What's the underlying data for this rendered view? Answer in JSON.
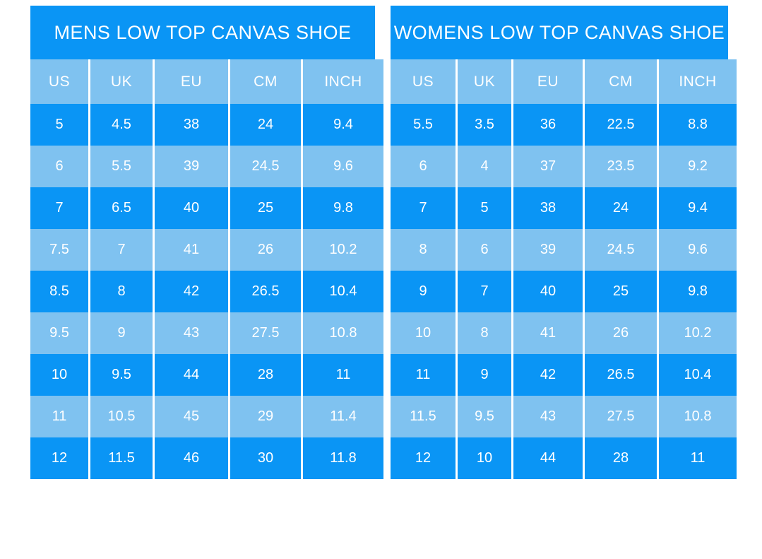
{
  "colors": {
    "primary_blue": "#0a95f5",
    "light_blue": "#7fc2f0",
    "text_white": "#ffffff",
    "page_background": "#ffffff"
  },
  "chart_data": [
    {
      "type": "table",
      "title": "MENS LOW TOP CANVAS SHOE",
      "columns": [
        "US",
        "UK",
        "EU",
        "CM",
        "INCH"
      ],
      "rows": [
        [
          "5",
          "4.5",
          "38",
          "24",
          "9.4"
        ],
        [
          "6",
          "5.5",
          "39",
          "24.5",
          "9.6"
        ],
        [
          "7",
          "6.5",
          "40",
          "25",
          "9.8"
        ],
        [
          "7.5",
          "7",
          "41",
          "26",
          "10.2"
        ],
        [
          "8.5",
          "8",
          "42",
          "26.5",
          "10.4"
        ],
        [
          "9.5",
          "9",
          "43",
          "27.5",
          "10.8"
        ],
        [
          "10",
          "9.5",
          "44",
          "28",
          "11"
        ],
        [
          "11",
          "10.5",
          "45",
          "29",
          "11.4"
        ],
        [
          "12",
          "11.5",
          "46",
          "30",
          "11.8"
        ]
      ],
      "layout_hints": {
        "row_striping": "alternating dark/light blue starting dark",
        "gridlines": "vertical white separators only"
      }
    },
    {
      "type": "table",
      "title": "WOMENS LOW TOP CANVAS SHOE",
      "columns": [
        "US",
        "UK",
        "EU",
        "CM",
        "INCH"
      ],
      "rows": [
        [
          "5.5",
          "3.5",
          "36",
          "22.5",
          "8.8"
        ],
        [
          "6",
          "4",
          "37",
          "23.5",
          "9.2"
        ],
        [
          "7",
          "5",
          "38",
          "24",
          "9.4"
        ],
        [
          "8",
          "6",
          "39",
          "24.5",
          "9.6"
        ],
        [
          "9",
          "7",
          "40",
          "25",
          "9.8"
        ],
        [
          "10",
          "8",
          "41",
          "26",
          "10.2"
        ],
        [
          "11",
          "9",
          "42",
          "26.5",
          "10.4"
        ],
        [
          "11.5",
          "9.5",
          "43",
          "27.5",
          "10.8"
        ],
        [
          "12",
          "10",
          "44",
          "28",
          "11"
        ]
      ],
      "layout_hints": {
        "row_striping": "alternating dark/light blue starting dark",
        "gridlines": "vertical white separators only"
      }
    }
  ]
}
